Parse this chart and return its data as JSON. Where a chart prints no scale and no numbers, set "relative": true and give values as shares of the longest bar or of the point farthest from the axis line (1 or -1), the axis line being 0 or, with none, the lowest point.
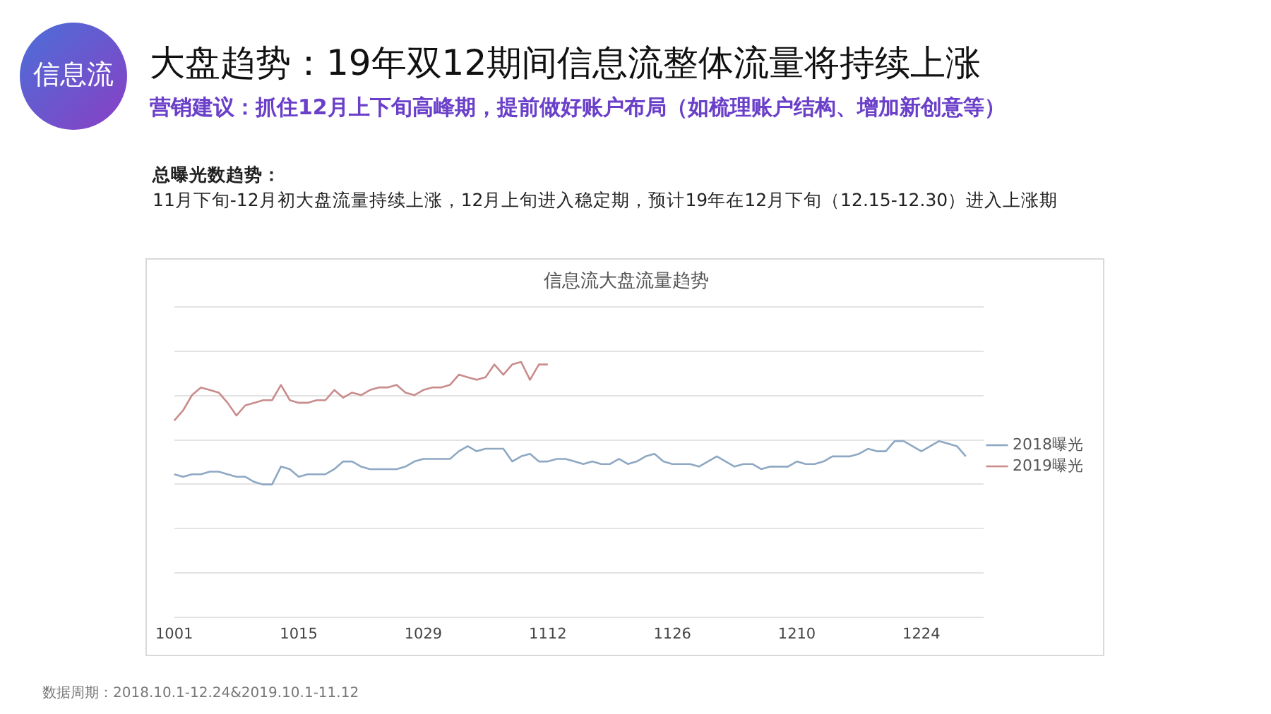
{
  "chart_data": {
    "type": "line",
    "title": "信息流大盘流量趋势",
    "relative": true,
    "grid": "y",
    "legend": "right",
    "marker": "none",
    "line_style": "solid",
    "annotations": [
      "信息流",
      "大盘趋势：19年双12期间信息流整体流量将持续上涨",
      "营销建议：抓住12月上下旬高峰期，提前做好账户布局（如梳理账户结构、增加新创意等）",
      "总曝光数趋势：",
      "11月下旬-12月初大盘流量持续上涨，12月上旬进入稳定期，预计19年在12月下旬（12.15-12.30）进入上涨期",
      "数据周期：2018.10.1-12.24&2019.10.1-11.12"
    ],
    "categories": [
      "1001",
      null,
      null,
      null,
      null,
      null,
      null,
      null,
      null,
      null,
      null,
      null,
      null,
      null,
      "1015",
      null,
      null,
      null,
      null,
      null,
      null,
      null,
      null,
      null,
      null,
      null,
      null,
      null,
      "1029",
      null,
      null,
      null,
      null,
      null,
      null,
      null,
      null,
      null,
      null,
      null,
      null,
      null,
      "1112",
      null,
      null,
      null,
      null,
      null,
      null,
      null,
      null,
      null,
      null,
      null,
      null,
      null,
      "1126",
      null,
      null,
      null,
      null,
      null,
      null,
      null,
      null,
      null,
      null,
      null,
      null,
      null,
      "1210",
      null,
      null,
      null,
      null,
      null,
      null,
      null,
      null,
      null,
      null,
      null,
      null,
      null,
      "1224",
      null,
      null,
      null,
      null,
      null,
      null,
      null
    ],
    "series": [
      {
        "name": "2018曝光",
        "color": "#8ea8c3",
        "values": [
          0.56,
          0.55,
          0.56,
          0.56,
          0.57,
          0.57,
          0.56,
          0.55,
          0.55,
          0.53,
          0.52,
          0.52,
          0.59,
          0.58,
          0.55,
          0.56,
          0.56,
          0.56,
          0.58,
          0.61,
          0.61,
          0.59,
          0.58,
          0.58,
          0.58,
          0.58,
          0.59,
          0.61,
          0.62,
          0.62,
          0.62,
          0.62,
          0.65,
          0.67,
          0.65,
          0.66,
          0.66,
          0.66,
          0.61,
          0.63,
          0.64,
          0.61,
          0.61,
          0.62,
          0.62,
          0.61,
          0.6,
          0.61,
          0.6,
          0.6,
          0.62,
          0.6,
          0.61,
          0.63,
          0.64,
          0.61,
          0.6,
          0.6,
          0.6,
          0.59,
          0.61,
          0.63,
          0.61,
          0.59,
          0.6,
          0.6,
          0.58,
          0.59,
          0.59,
          0.59,
          0.61,
          0.6,
          0.6,
          0.61,
          0.63,
          0.63,
          0.63,
          0.64,
          0.66,
          0.65,
          0.65,
          0.69,
          0.69,
          0.67,
          0.65,
          0.67,
          0.69,
          0.68,
          0.67,
          0.63,
          null,
          null
        ]
      },
      {
        "name": "2019曝光",
        "color": "#c98c8c",
        "values": [
          0.77,
          0.81,
          0.87,
          0.9,
          0.89,
          0.88,
          0.84,
          0.79,
          0.83,
          0.84,
          0.85,
          0.85,
          0.91,
          0.85,
          0.84,
          0.84,
          0.85,
          0.85,
          0.89,
          0.86,
          0.88,
          0.87,
          0.89,
          0.9,
          0.9,
          0.91,
          0.88,
          0.87,
          0.89,
          0.9,
          0.9,
          0.91,
          0.95,
          0.94,
          0.93,
          0.94,
          0.99,
          0.95,
          0.99,
          1.0,
          0.93,
          0.99,
          0.99,
          null,
          null,
          null,
          null,
          null,
          null,
          null,
          null,
          null,
          null,
          null,
          null,
          null,
          null,
          null,
          null,
          null,
          null,
          null,
          null,
          null,
          null,
          null,
          null,
          null,
          null,
          null,
          null,
          null,
          null,
          null,
          null,
          null,
          null,
          null,
          null,
          null,
          null,
          null,
          null,
          null,
          null,
          null,
          null,
          null,
          null,
          null,
          null,
          null
        ]
      }
    ]
  }
}
